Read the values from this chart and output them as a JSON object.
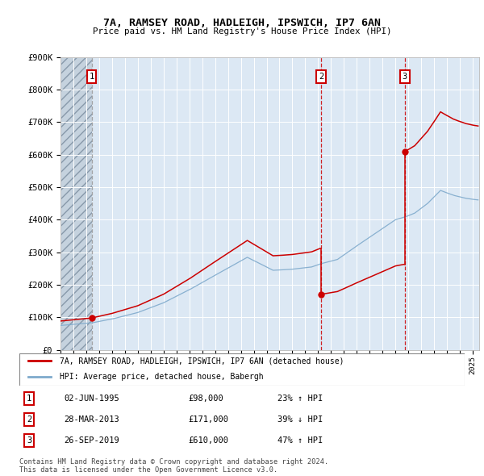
{
  "title": "7A, RAMSEY ROAD, HADLEIGH, IPSWICH, IP7 6AN",
  "subtitle": "Price paid vs. HM Land Registry's House Price Index (HPI)",
  "ylim": [
    0,
    900000
  ],
  "yticks": [
    0,
    100000,
    200000,
    300000,
    400000,
    500000,
    600000,
    700000,
    800000,
    900000
  ],
  "ytick_labels": [
    "£0",
    "£100K",
    "£200K",
    "£300K",
    "£400K",
    "£500K",
    "£600K",
    "£700K",
    "£800K",
    "£900K"
  ],
  "property_color": "#cc0000",
  "hpi_color": "#7faacc",
  "bg_main": "#dce8f4",
  "bg_hatch": "#c8d4de",
  "sale_dates": [
    1995.42,
    2013.23,
    2019.73
  ],
  "sale_prices": [
    98000,
    171000,
    610000
  ],
  "sale_labels": [
    "1",
    "2",
    "3"
  ],
  "sale_pct": [
    "23% ↑ HPI",
    "39% ↓ HPI",
    "47% ↑ HPI"
  ],
  "sale_date_strs": [
    "02-JUN-1995",
    "28-MAR-2013",
    "26-SEP-2019"
  ],
  "sale_price_strs": [
    "£98,000",
    "£171,000",
    "£610,000"
  ],
  "legend_property": "7A, RAMSEY ROAD, HADLEIGH, IPSWICH, IP7 6AN (detached house)",
  "legend_hpi": "HPI: Average price, detached house, Babergh",
  "footnote": "Contains HM Land Registry data © Crown copyright and database right 2024.\nThis data is licensed under the Open Government Licence v3.0.",
  "xmin": 1993.0,
  "xmax": 2025.5
}
